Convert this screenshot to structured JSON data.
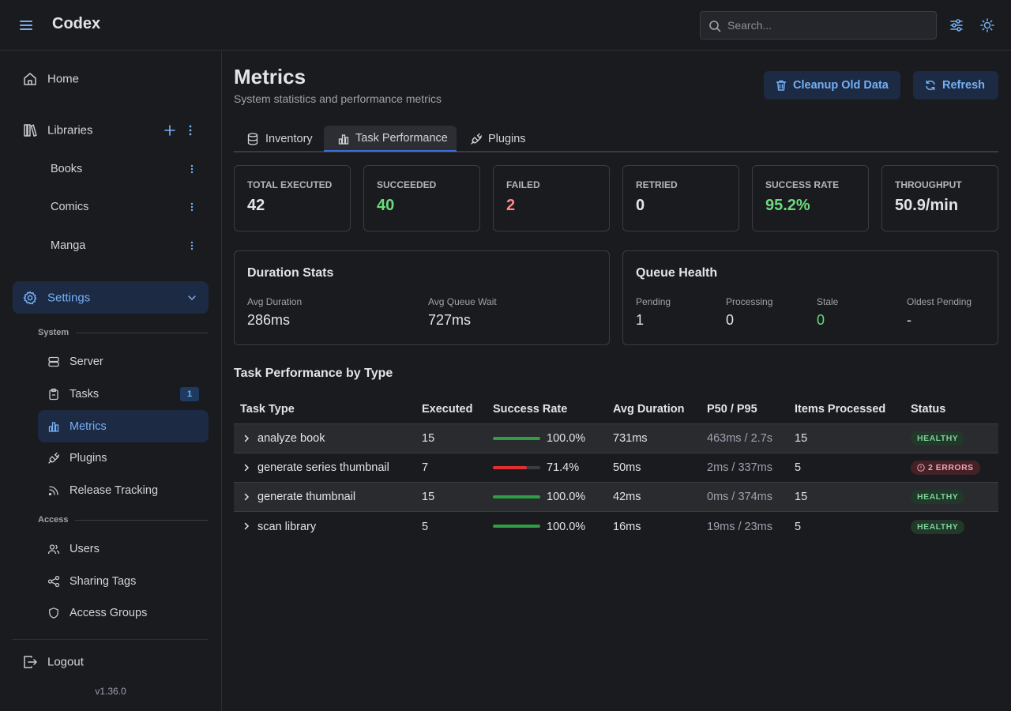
{
  "header": {
    "app_title": "Codex",
    "search_placeholder": "Search..."
  },
  "sidebar": {
    "home": "Home",
    "libraries": "Libraries",
    "library_items": [
      "Books",
      "Comics",
      "Manga"
    ],
    "settings": "Settings",
    "system_label": "System",
    "system_items": [
      "Server",
      "Tasks",
      "Metrics",
      "Plugins",
      "Release Tracking"
    ],
    "tasks_badge": "1",
    "access_label": "Access",
    "access_items": [
      "Users",
      "Sharing Tags",
      "Access Groups"
    ],
    "logout": "Logout",
    "version": "v1.36.0"
  },
  "page": {
    "title": "Metrics",
    "subtitle": "System statistics and performance metrics",
    "cleanup_label": "Cleanup Old Data",
    "refresh_label": "Refresh"
  },
  "tabs": [
    "Inventory",
    "Task Performance",
    "Plugins"
  ],
  "stats": [
    {
      "label": "TOTAL EXECUTED",
      "value": "42",
      "color": "#e4e4e7"
    },
    {
      "label": "SUCCEEDED",
      "value": "40",
      "color": "#69db7c"
    },
    {
      "label": "FAILED",
      "value": "2",
      "color": "#ff8787"
    },
    {
      "label": "RETRIED",
      "value": "0",
      "color": "#e4e4e7"
    },
    {
      "label": "SUCCESS RATE",
      "value": "95.2%",
      "color": "#69db7c"
    },
    {
      "label": "THROUGHPUT",
      "value": "50.9/min",
      "color": "#e4e4e7"
    }
  ],
  "duration": {
    "title": "Duration Stats",
    "avg_duration_label": "Avg Duration",
    "avg_duration": "286ms",
    "avg_wait_label": "Avg Queue Wait",
    "avg_wait": "727ms"
  },
  "queue": {
    "title": "Queue Health",
    "pending_label": "Pending",
    "pending": "1",
    "processing_label": "Processing",
    "processing": "0",
    "stale_label": "Stale",
    "stale": "0",
    "oldest_label": "Oldest Pending",
    "oldest": "-"
  },
  "table": {
    "title": "Task Performance by Type",
    "columns": [
      "Task Type",
      "Executed",
      "Success Rate",
      "Avg Duration",
      "P50 / P95",
      "Items Processed",
      "Status"
    ],
    "rows": [
      {
        "type": "analyze book",
        "executed": "15",
        "rate": 100.0,
        "rate_text": "100.0%",
        "avg": "731ms",
        "p50p95": "463ms / 2.7s",
        "items": "15",
        "status": "HEALTHY",
        "status_kind": "ok"
      },
      {
        "type": "generate series thumbnail",
        "executed": "7",
        "rate": 71.4,
        "rate_text": "71.4%",
        "avg": "50ms",
        "p50p95": "2ms / 337ms",
        "items": "5",
        "status": "2 ERRORS",
        "status_kind": "err"
      },
      {
        "type": "generate thumbnail",
        "executed": "15",
        "rate": 100.0,
        "rate_text": "100.0%",
        "avg": "42ms",
        "p50p95": "0ms / 374ms",
        "items": "15",
        "status": "HEALTHY",
        "status_kind": "ok"
      },
      {
        "type": "scan library",
        "executed": "5",
        "rate": 100.0,
        "rate_text": "100.0%",
        "avg": "16ms",
        "p50p95": "19ms / 23ms",
        "items": "5",
        "status": "HEALTHY",
        "status_kind": "ok"
      }
    ]
  },
  "colors": {
    "accent": "#74b0f5",
    "success": "#2f9e44",
    "danger": "#e03131"
  }
}
